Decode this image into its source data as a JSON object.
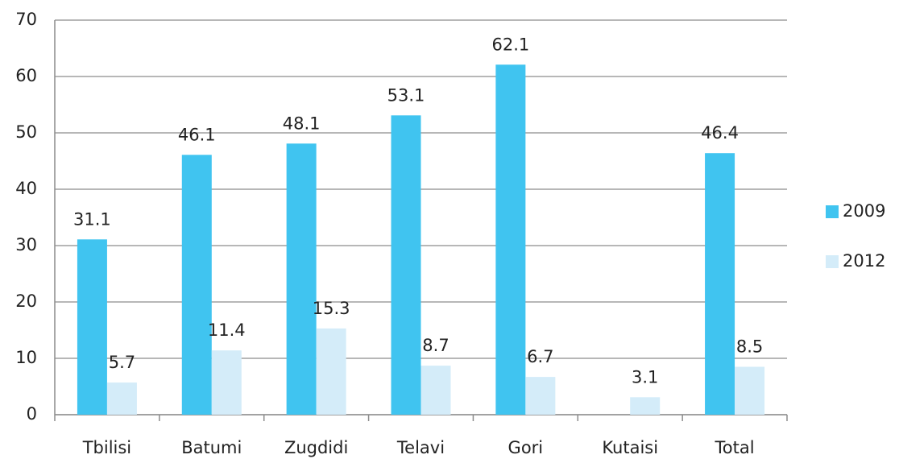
{
  "chart_data": {
    "type": "bar",
    "categories": [
      "Tbilisi",
      "Batumi",
      "Zugdidi",
      "Telavi",
      "Gori",
      "Kutaisi",
      "Total"
    ],
    "series": [
      {
        "name": "2009",
        "color": "#40c4f0",
        "values": [
          31.1,
          46.1,
          48.1,
          53.1,
          62.1,
          null,
          46.4
        ]
      },
      {
        "name": "2012",
        "color": "#d4ecf9",
        "values": [
          5.7,
          11.4,
          15.3,
          8.7,
          6.7,
          3.1,
          8.5
        ]
      }
    ],
    "ylim": [
      0,
      70
    ],
    "yticks": [
      0,
      10,
      20,
      30,
      40,
      50,
      60,
      70
    ],
    "grid": true,
    "legend": "right"
  }
}
